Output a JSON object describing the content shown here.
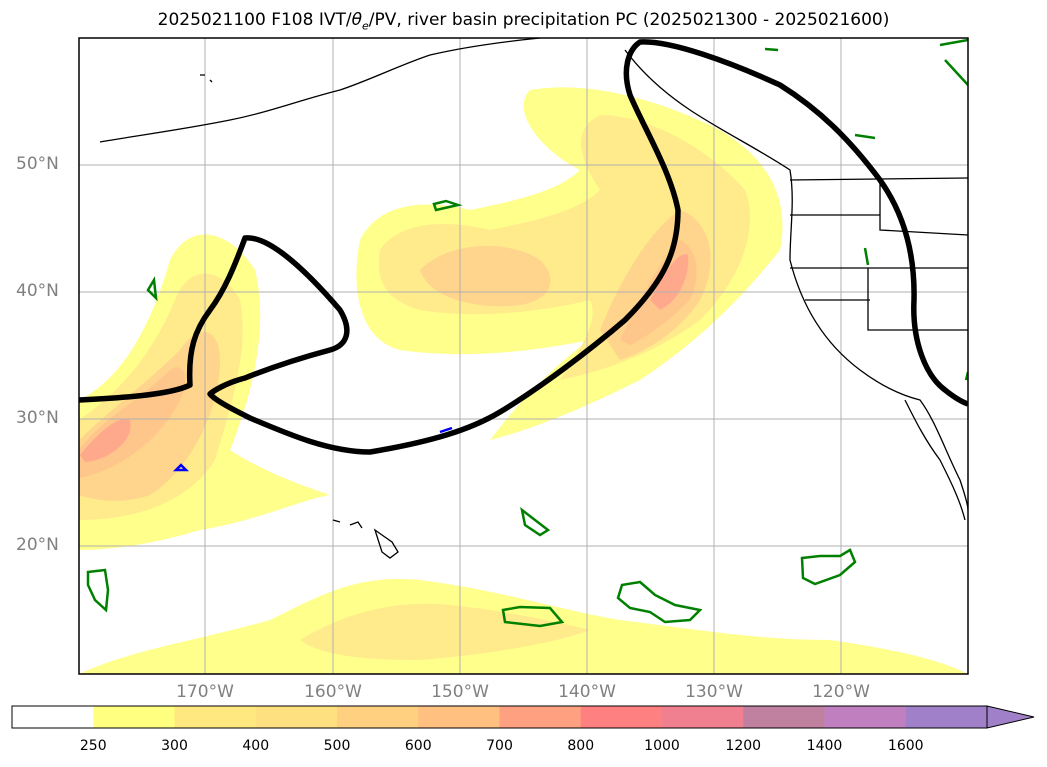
{
  "title": {
    "prefix": "2025021100 F108 IVT/",
    "theta": "θ",
    "theta_sub": "e",
    "suffix": "/PV, river basin precipitation PC (2025021300 - 2025021600)"
  },
  "map": {
    "region": "North Pacific / western North America",
    "lat_labels": [
      "50°N",
      "40°N",
      "30°N",
      "20°N"
    ],
    "lon_labels": [
      "170°W",
      "160°W",
      "150°W",
      "140°W",
      "130°W",
      "120°W"
    ],
    "gridlines": true
  },
  "colorbar": {
    "levels": [
      "250",
      "300",
      "400",
      "500",
      "600",
      "700",
      "800",
      "1000",
      "1200",
      "1400",
      "1600"
    ],
    "colors": [
      "#ffffff",
      "#ffff80",
      "#ffe880",
      "#ffe080",
      "#ffd080",
      "#ffc080",
      "#ffa080",
      "#ff8080",
      "#f08090",
      "#c080a0",
      "#c080c0",
      "#a080c8"
    ],
    "extend": "max"
  },
  "contours": {
    "pv_color": "#000000",
    "precip_color": "#008000",
    "low_color": "#0000ff"
  }
}
